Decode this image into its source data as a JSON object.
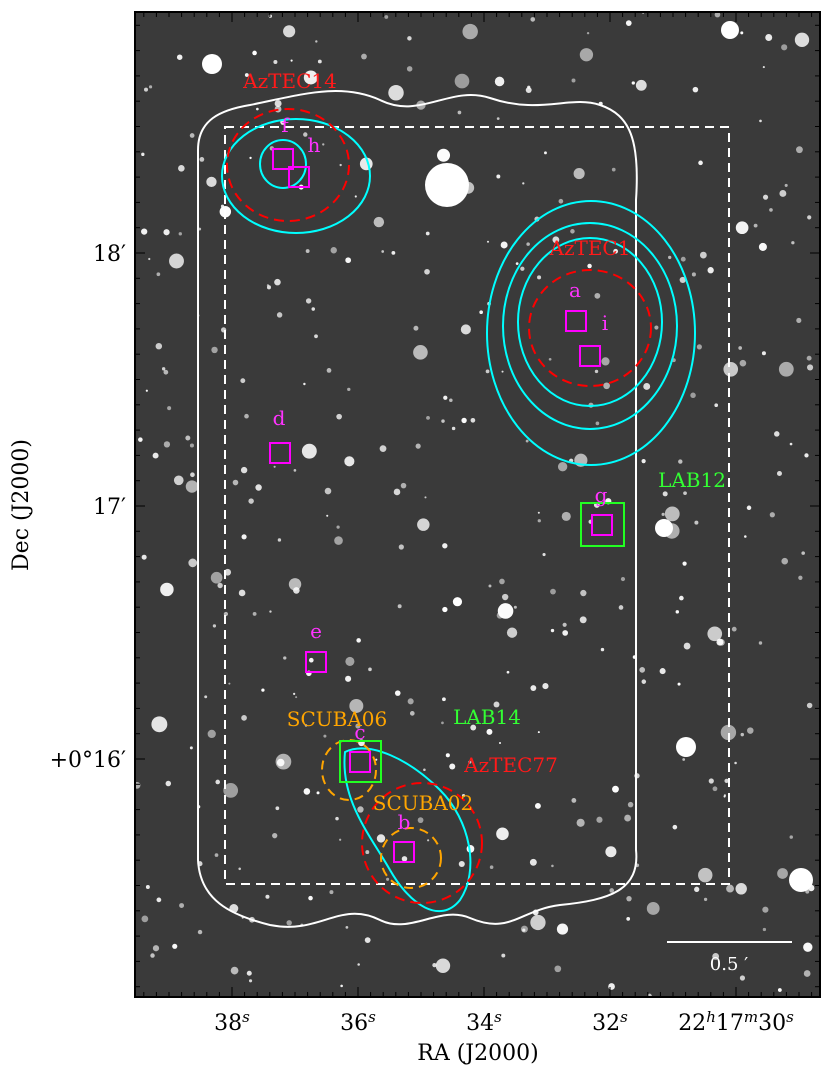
{
  "axes": {
    "xlabel": "RA (J2000)",
    "ylabel": "Dec (J2000)",
    "xticks": [
      [
        [
          "38",
          "s"
        ]
      ],
      [
        [
          "36",
          "s"
        ]
      ],
      [
        [
          "34",
          "s"
        ]
      ],
      [
        [
          "32",
          "s"
        ]
      ],
      [
        [
          "22",
          "h"
        ],
        [
          "17",
          "m"
        ],
        [
          "30",
          "s"
        ]
      ]
    ],
    "yticks": [
      "18′",
      "17′",
      "+0°16′"
    ]
  },
  "labels": [
    {
      "text": "AzTEC14",
      "color": "red"
    },
    {
      "text": "f",
      "color": "magenta"
    },
    {
      "text": "h",
      "color": "magenta"
    },
    {
      "text": "AzTEC1",
      "color": "red"
    },
    {
      "text": "a",
      "color": "magenta"
    },
    {
      "text": "i",
      "color": "magenta"
    },
    {
      "text": "d",
      "color": "magenta"
    },
    {
      "text": "LAB12",
      "color": "lime"
    },
    {
      "text": "g",
      "color": "magenta"
    },
    {
      "text": "e",
      "color": "magenta"
    },
    {
      "text": "SCUBA06",
      "color": "orange"
    },
    {
      "text": "LAB14",
      "color": "lime"
    },
    {
      "text": "c",
      "color": "magenta"
    },
    {
      "text": "AzTEC77",
      "color": "red"
    },
    {
      "text": "SCUBA02",
      "color": "orange"
    },
    {
      "text": "b",
      "color": "magenta"
    }
  ],
  "scale_bar": "0.5 ′"
}
